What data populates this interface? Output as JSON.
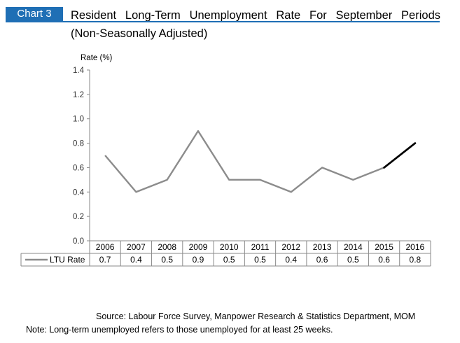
{
  "header": {
    "badge": "Chart 3",
    "title_line1": "Resident Long-Term Unemployment Rate For September Periods",
    "title_line2": "(Non-Seasonally Adjusted)"
  },
  "chart_data": {
    "type": "line",
    "ylabel": "Rate (%)",
    "categories": [
      "2006",
      "2007",
      "2008",
      "2009",
      "2010",
      "2011",
      "2012",
      "2013",
      "2014",
      "2015",
      "2016"
    ],
    "series": [
      {
        "name": "LTU Rate",
        "values": [
          0.7,
          0.4,
          0.5,
          0.9,
          0.5,
          0.5,
          0.4,
          0.6,
          0.5,
          0.6,
          0.8
        ],
        "color": "#8c8c8c",
        "highlight_last_segment_color": "#000000"
      }
    ],
    "value_labels": [
      "0.7",
      "0.4",
      "0.5",
      "0.9",
      "0.5",
      "0.5",
      "0.4",
      "0.6",
      "0.5",
      "0.6",
      "0.8"
    ],
    "ylim": [
      0,
      1.4
    ],
    "yticks": [
      "0.0",
      "0.2",
      "0.4",
      "0.6",
      "0.8",
      "1.0",
      "1.2",
      "1.4"
    ],
    "grid": false,
    "legend": "data-table"
  },
  "footer": {
    "source": "Source: Labour Force Survey, Manpower Research & Statistics Department, MOM",
    "note": "Note: Long-term unemployed refers to those unemployed for at least 25 weeks."
  }
}
